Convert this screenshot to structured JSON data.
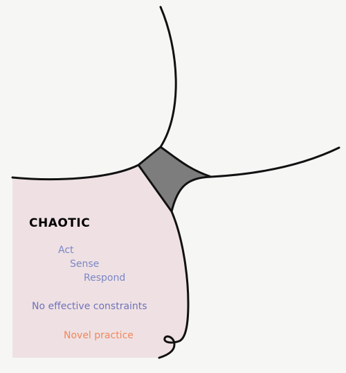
{
  "domain": {
    "title": "CHAOTIC",
    "steps": [
      "Act",
      "Sense",
      "Respond"
    ],
    "constraints": "No effective constraints",
    "practice": "Novel practice"
  },
  "colors": {
    "background": "#f6f6f5",
    "domain_fill": "#efe1e3",
    "center_fill": "#7d7d7d",
    "outline": "#111111",
    "title": "#000000",
    "steps": "#7b86c6",
    "constraints": "#6f72b8",
    "practice": "#f0865c"
  }
}
